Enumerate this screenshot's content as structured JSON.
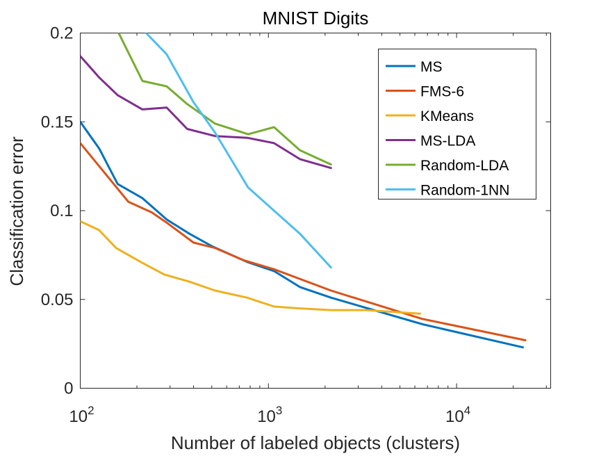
{
  "chart_data": {
    "type": "line",
    "title": "MNIST Digits",
    "xlabel": "Number of labeled objects (clusters)",
    "ylabel": "Classification error",
    "xscale": "log",
    "xlim": [
      100,
      31623
    ],
    "ylim": [
      0,
      0.2
    ],
    "x_ticks": [
      {
        "value": 100,
        "base": "10",
        "exp": "2"
      },
      {
        "value": 1000,
        "base": "10",
        "exp": "3"
      },
      {
        "value": 10000,
        "base": "10",
        "exp": "4"
      }
    ],
    "y_ticks": [
      {
        "value": 0,
        "label": "0"
      },
      {
        "value": 0.05,
        "label": "0.05"
      },
      {
        "value": 0.1,
        "label": "0.1"
      },
      {
        "value": 0.15,
        "label": "0.15"
      },
      {
        "value": 0.2,
        "label": "0.2"
      }
    ],
    "grid": false,
    "legend_position": "top-right",
    "series": [
      {
        "name": "MS",
        "color": "#0072BD",
        "x": [
          100,
          126,
          158,
          214,
          288,
          380,
          500,
          775,
          1070,
          1470,
          2150,
          6600,
          22500
        ],
        "y": [
          0.15,
          0.135,
          0.115,
          0.107,
          0.095,
          0.087,
          0.08,
          0.071,
          0.066,
          0.057,
          0.051,
          0.036,
          0.023
        ]
      },
      {
        "name": "FMS-6",
        "color": "#D95319",
        "x": [
          100,
          180,
          240,
          290,
          400,
          520,
          740,
          1070,
          2150,
          6600,
          23200
        ],
        "y": [
          0.138,
          0.105,
          0.099,
          0.093,
          0.082,
          0.079,
          0.072,
          0.067,
          0.055,
          0.039,
          0.027
        ]
      },
      {
        "name": "KMeans",
        "color": "#EDB120",
        "x": [
          100,
          126,
          155,
          210,
          280,
          380,
          520,
          770,
          1070,
          1430,
          2150,
          3300,
          6400
        ],
        "y": [
          0.094,
          0.089,
          0.079,
          0.071,
          0.064,
          0.06,
          0.055,
          0.051,
          0.046,
          0.045,
          0.044,
          0.044,
          0.042
        ]
      },
      {
        "name": "MS-LDA",
        "color": "#7E2F8E",
        "x": [
          100,
          126,
          158,
          214,
          288,
          370,
          520,
          770,
          1070,
          1470,
          2150
        ],
        "y": [
          0.187,
          0.175,
          0.165,
          0.157,
          0.158,
          0.146,
          0.142,
          0.141,
          0.138,
          0.129,
          0.124
        ]
      },
      {
        "name": "Random-LDA",
        "color": "#77AC30",
        "x": [
          160,
          214,
          288,
          370,
          520,
          780,
          1070,
          1470,
          2150
        ],
        "y": [
          0.2,
          0.173,
          0.17,
          0.16,
          0.149,
          0.143,
          0.147,
          0.134,
          0.126
        ]
      },
      {
        "name": "Random-1NN",
        "color": "#4DBEEE",
        "x": [
          224,
          288,
          400,
          520,
          780,
          1070,
          1470,
          2150
        ],
        "y": [
          0.2,
          0.188,
          0.161,
          0.144,
          0.113,
          0.1,
          0.087,
          0.068
        ]
      }
    ]
  }
}
